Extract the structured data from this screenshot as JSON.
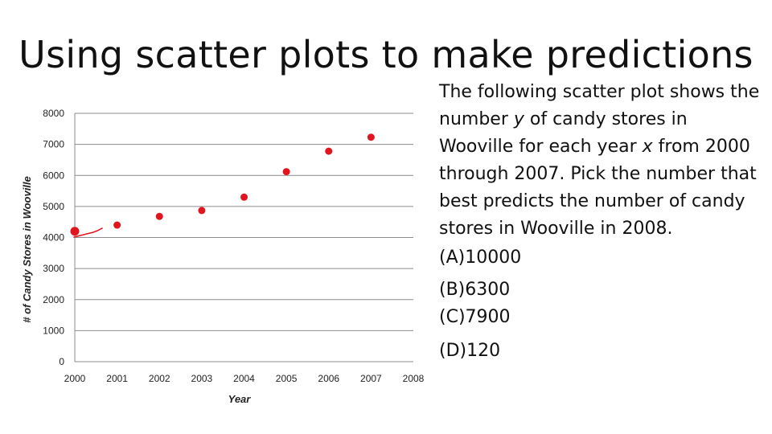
{
  "slide": {
    "title": "Using scatter plots to make predictions"
  },
  "question": {
    "part1": "The following scatter plot shows the number ",
    "var_y": "y",
    "part2": " of candy stores in Wooville for each year ",
    "var_x": "x",
    "part3": " from 2000 through 2007.  Pick the number that best predicts the number of candy stores in Wooville in 2008."
  },
  "choices": [
    {
      "label": "(A)10000"
    },
    {
      "label": "(B)6300"
    },
    {
      "label": "(C)7900"
    },
    {
      "label": "(D)120"
    }
  ],
  "chart_data": {
    "type": "scatter",
    "title": "",
    "xlabel": "Year",
    "ylabel": "# of Candy Stores in Wooville",
    "xlim": [
      2000,
      2008
    ],
    "ylim": [
      0,
      8000
    ],
    "x_ticks": [
      2000,
      2001,
      2002,
      2003,
      2004,
      2005,
      2006,
      2007,
      2008
    ],
    "y_ticks": [
      0,
      1000,
      2000,
      3000,
      4000,
      5000,
      6000,
      7000,
      8000
    ],
    "grid": "horizontal",
    "x": [
      2000,
      2001,
      2002,
      2003,
      2004,
      2005,
      2006,
      2007
    ],
    "y": [
      4200,
      4400,
      4680,
      4870,
      5300,
      6120,
      6780,
      7230
    ],
    "marker_color": "#e0151d",
    "gridline_color": "#8c8c8c"
  }
}
